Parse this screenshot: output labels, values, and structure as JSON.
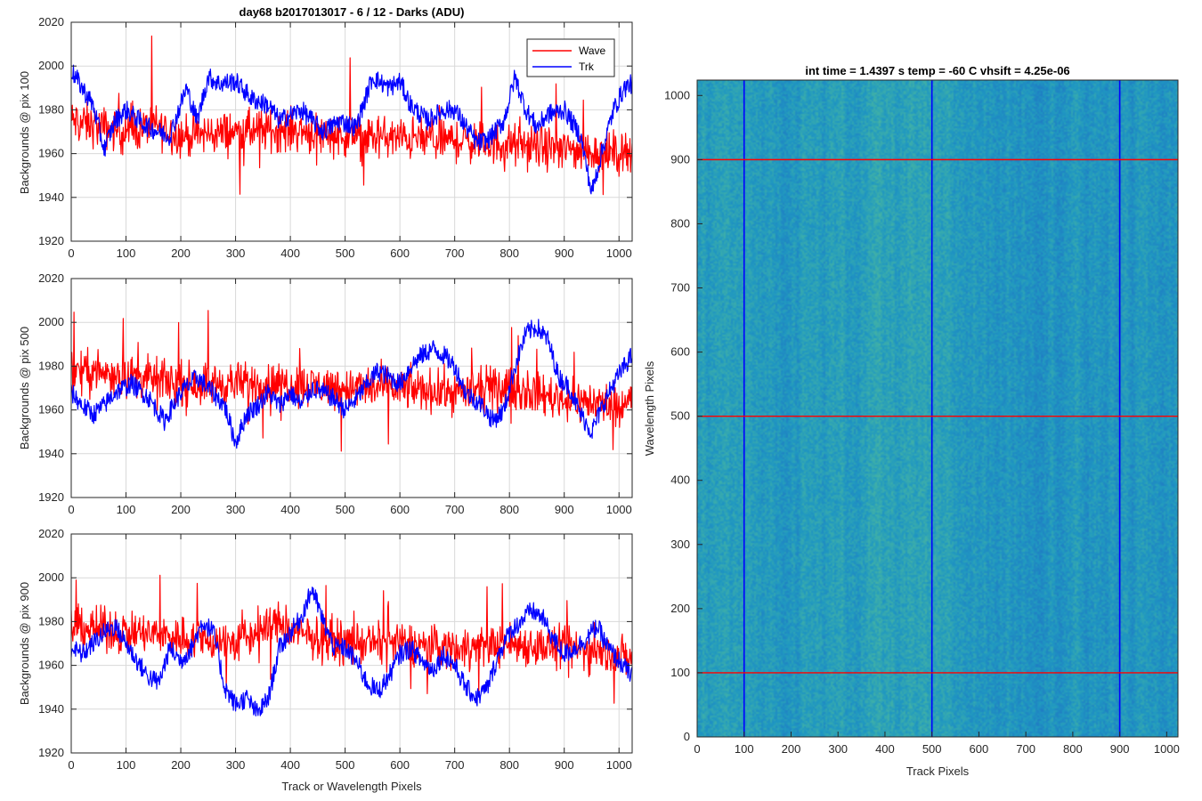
{
  "figure": {
    "colors": {
      "wave": "#ff0000",
      "trk": "#0000ff",
      "grid": "#d9d9d9",
      "axis": "#262626"
    }
  },
  "chart_data": [
    {
      "type": "line",
      "title": "day68 b2017013017 - 6 / 12 - Darks (ADU)",
      "xlabel": "",
      "ylabel": "Backgrounds @ pix 100",
      "xlim": [
        0,
        1024
      ],
      "ylim": [
        1920,
        2020
      ],
      "xticks": [
        0,
        100,
        200,
        300,
        400,
        500,
        600,
        700,
        800,
        900,
        1000
      ],
      "yticks": [
        1920,
        1940,
        1960,
        1980,
        2000,
        2020
      ],
      "grid": true,
      "legend": "top-right",
      "series": [
        {
          "name": "Wave",
          "color": "#ff0000",
          "mean": 1970,
          "noise": 10,
          "points": [
            [
              0,
              1975
            ],
            [
              50,
              1972
            ],
            [
              100,
              1970
            ],
            [
              150,
              1973
            ],
            [
              200,
              1968
            ],
            [
              300,
              1970
            ],
            [
              400,
              1971
            ],
            [
              500,
              1968
            ],
            [
              600,
              1967
            ],
            [
              700,
              1966
            ],
            [
              800,
              1964
            ],
            [
              900,
              1962
            ],
            [
              1000,
              1960
            ],
            [
              1024,
              1962
            ]
          ]
        },
        {
          "name": "Trk",
          "color": "#0000ff",
          "points": [
            [
              0,
              1998
            ],
            [
              20,
              1990
            ],
            [
              40,
              1982
            ],
            [
              60,
              1962
            ],
            [
              80,
              1975
            ],
            [
              100,
              1980
            ],
            [
              140,
              1972
            ],
            [
              180,
              1968
            ],
            [
              210,
              1990
            ],
            [
              230,
              1975
            ],
            [
              250,
              1995
            ],
            [
              270,
              1992
            ],
            [
              300,
              1993
            ],
            [
              330,
              1985
            ],
            [
              360,
              1982
            ],
            [
              380,
              1975
            ],
            [
              420,
              1980
            ],
            [
              460,
              1970
            ],
            [
              490,
              1975
            ],
            [
              520,
              1972
            ],
            [
              550,
              1995
            ],
            [
              580,
              1990
            ],
            [
              600,
              1993
            ],
            [
              620,
              1982
            ],
            [
              650,
              1975
            ],
            [
              680,
              1980
            ],
            [
              700,
              1980
            ],
            [
              740,
              1965
            ],
            [
              760,
              1966
            ],
            [
              790,
              1975
            ],
            [
              810,
              1995
            ],
            [
              830,
              1980
            ],
            [
              850,
              1972
            ],
            [
              870,
              1978
            ],
            [
              900,
              1980
            ],
            [
              930,
              1968
            ],
            [
              950,
              1942
            ],
            [
              970,
              1962
            ],
            [
              990,
              1980
            ],
            [
              1010,
              1990
            ],
            [
              1024,
              1992
            ]
          ]
        }
      ]
    },
    {
      "type": "line",
      "title": "",
      "xlabel": "",
      "ylabel": "Backgrounds @ pix 500",
      "xlim": [
        0,
        1024
      ],
      "ylim": [
        1920,
        2020
      ],
      "xticks": [
        0,
        100,
        200,
        300,
        400,
        500,
        600,
        700,
        800,
        900,
        1000
      ],
      "yticks": [
        1920,
        1940,
        1960,
        1980,
        2000,
        2020
      ],
      "grid": true,
      "series": [
        {
          "name": "Wave",
          "color": "#ff0000",
          "mean": 1972,
          "noise": 10,
          "points": [
            [
              0,
              1978
            ],
            [
              100,
              1976
            ],
            [
              200,
              1972
            ],
            [
              300,
              1972
            ],
            [
              400,
              1972
            ],
            [
              500,
              1970
            ],
            [
              600,
              1970
            ],
            [
              700,
              1968
            ],
            [
              800,
              1970
            ],
            [
              900,
              1965
            ],
            [
              1000,
              1962
            ],
            [
              1024,
              1965
            ]
          ]
        },
        {
          "name": "Trk",
          "color": "#0000ff",
          "points": [
            [
              0,
              1968
            ],
            [
              20,
              1962
            ],
            [
              40,
              1958
            ],
            [
              60,
              1962
            ],
            [
              80,
              1968
            ],
            [
              110,
              1972
            ],
            [
              140,
              1966
            ],
            [
              170,
              1955
            ],
            [
              200,
              1968
            ],
            [
              230,
              1975
            ],
            [
              250,
              1970
            ],
            [
              280,
              1962
            ],
            [
              300,
              1945
            ],
            [
              320,
              1958
            ],
            [
              340,
              1962
            ],
            [
              360,
              1968
            ],
            [
              380,
              1962
            ],
            [
              400,
              1968
            ],
            [
              420,
              1962
            ],
            [
              440,
              1970
            ],
            [
              460,
              1968
            ],
            [
              480,
              1965
            ],
            [
              500,
              1960
            ],
            [
              520,
              1965
            ],
            [
              540,
              1972
            ],
            [
              560,
              1978
            ],
            [
              580,
              1975
            ],
            [
              600,
              1972
            ],
            [
              620,
              1980
            ],
            [
              640,
              1985
            ],
            [
              660,
              1988
            ],
            [
              680,
              1985
            ],
            [
              700,
              1980
            ],
            [
              720,
              1968
            ],
            [
              750,
              1962
            ],
            [
              770,
              1955
            ],
            [
              790,
              1960
            ],
            [
              810,
              1980
            ],
            [
              830,
              1995
            ],
            [
              850,
              1998
            ],
            [
              870,
              1992
            ],
            [
              890,
              1975
            ],
            [
              910,
              1970
            ],
            [
              930,
              1958
            ],
            [
              950,
              1950
            ],
            [
              970,
              1962
            ],
            [
              990,
              1972
            ],
            [
              1010,
              1980
            ],
            [
              1024,
              1985
            ]
          ]
        }
      ]
    },
    {
      "type": "line",
      "title": "",
      "xlabel": "Track or Wavelength Pixels",
      "ylabel": "Backgrounds @ pix 900",
      "xlim": [
        0,
        1024
      ],
      "ylim": [
        1920,
        2020
      ],
      "xticks": [
        0,
        100,
        200,
        300,
        400,
        500,
        600,
        700,
        800,
        900,
        1000
      ],
      "yticks": [
        1920,
        1940,
        1960,
        1980,
        2000,
        2020
      ],
      "grid": true,
      "series": [
        {
          "name": "Wave",
          "color": "#ff0000",
          "mean": 1972,
          "noise": 10,
          "points": [
            [
              0,
              1978
            ],
            [
              100,
              1975
            ],
            [
              200,
              1973
            ],
            [
              300,
              1970
            ],
            [
              380,
              1980
            ],
            [
              400,
              1975
            ],
            [
              500,
              1970
            ],
            [
              600,
              1970
            ],
            [
              700,
              1968
            ],
            [
              800,
              1970
            ],
            [
              900,
              1968
            ],
            [
              1000,
              1965
            ],
            [
              1024,
              1962
            ]
          ]
        },
        {
          "name": "Trk",
          "color": "#0000ff",
          "points": [
            [
              0,
              1968
            ],
            [
              20,
              1965
            ],
            [
              40,
              1970
            ],
            [
              60,
              1975
            ],
            [
              80,
              1978
            ],
            [
              100,
              1970
            ],
            [
              120,
              1962
            ],
            [
              140,
              1955
            ],
            [
              160,
              1952
            ],
            [
              180,
              1968
            ],
            [
              200,
              1962
            ],
            [
              220,
              1968
            ],
            [
              240,
              1980
            ],
            [
              260,
              1975
            ],
            [
              280,
              1950
            ],
            [
              300,
              1942
            ],
            [
              320,
              1945
            ],
            [
              340,
              1938
            ],
            [
              360,
              1945
            ],
            [
              380,
              1968
            ],
            [
              400,
              1975
            ],
            [
              420,
              1982
            ],
            [
              440,
              1995
            ],
            [
              460,
              1980
            ],
            [
              480,
              1968
            ],
            [
              500,
              1968
            ],
            [
              520,
              1962
            ],
            [
              540,
              1952
            ],
            [
              560,
              1948
            ],
            [
              580,
              1955
            ],
            [
              600,
              1965
            ],
            [
              620,
              1968
            ],
            [
              640,
              1962
            ],
            [
              660,
              1958
            ],
            [
              680,
              1965
            ],
            [
              700,
              1960
            ],
            [
              720,
              1950
            ],
            [
              740,
              1945
            ],
            [
              760,
              1950
            ],
            [
              780,
              1965
            ],
            [
              800,
              1975
            ],
            [
              820,
              1980
            ],
            [
              840,
              1985
            ],
            [
              860,
              1982
            ],
            [
              880,
              1972
            ],
            [
              900,
              1965
            ],
            [
              920,
              1968
            ],
            [
              940,
              1972
            ],
            [
              960,
              1978
            ],
            [
              980,
              1968
            ],
            [
              1000,
              1962
            ],
            [
              1024,
              1955
            ]
          ]
        }
      ]
    },
    {
      "type": "heatmap",
      "title": "int time = 1.4397 s   temp = -60 C   vhsift = 4.25e-06",
      "xlabel": "Track Pixels",
      "ylabel": "Wavelength Pixels",
      "xlim": [
        0,
        1024
      ],
      "ylim": [
        0,
        1024
      ],
      "xticks": [
        0,
        100,
        200,
        300,
        400,
        500,
        600,
        700,
        800,
        900,
        1000
      ],
      "yticks": [
        0,
        100,
        200,
        300,
        400,
        500,
        600,
        700,
        800,
        900,
        1000
      ],
      "colormap": [
        "#1f78c4",
        "#1f97c2",
        "#3fb0a8",
        "#7cc17a"
      ],
      "vlines": {
        "x": [
          100,
          500,
          900
        ],
        "color": "#0000ff"
      },
      "hlines": {
        "y": [
          100,
          500,
          900
        ],
        "color": "#ff0000"
      }
    }
  ]
}
